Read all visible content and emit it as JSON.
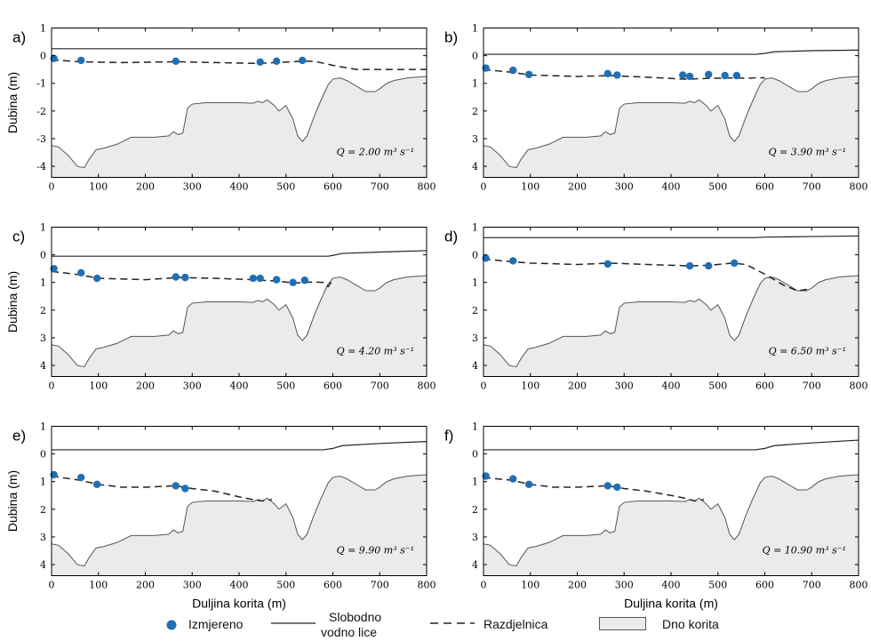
{
  "chart_data": {
    "type": "area",
    "xlabel": "Duljina korita (m)",
    "ylabel": "Dubina (m)",
    "xlim": [
      0,
      800
    ],
    "ylim_top": [
      -4.4,
      1
    ],
    "ylim_bottom": [
      4.4,
      -1
    ],
    "xticks": [
      0,
      100,
      200,
      300,
      400,
      500,
      600,
      700,
      800
    ],
    "yticks_top": [
      1,
      0,
      -1,
      -2,
      -3,
      -4
    ],
    "yticks_bottom": [
      1,
      0,
      1,
      2,
      3,
      4
    ],
    "yticklabels_top": [
      "1",
      "0",
      "-1",
      "-2",
      "-3",
      "-4"
    ],
    "yticklabels_bottom": [
      "1",
      "0",
      "1",
      "2",
      "3",
      "4"
    ],
    "grid": false,
    "legend_position": "bottom",
    "legend": {
      "measured": "Izmjereno",
      "water_surface_line1": "Slobodno",
      "water_surface_line2": "vodno lice",
      "separation": "Razdjelnica",
      "bed": "Dno korita"
    },
    "colors": {
      "measured": "#1f6fb5",
      "bed_fill": "#ebebeb",
      "bed_line": "#555555",
      "line": "#222222"
    },
    "bed": {
      "x": [
        0,
        15,
        35,
        55,
        70,
        80,
        95,
        110,
        140,
        170,
        190,
        220,
        250,
        260,
        270,
        280,
        290,
        300,
        330,
        380,
        400,
        430,
        440,
        450,
        460,
        475,
        485,
        500,
        515,
        525,
        535,
        545,
        560,
        575,
        590,
        600,
        615,
        630,
        650,
        670,
        690,
        700,
        715,
        730,
        760,
        800
      ],
      "y": [
        -3.25,
        -3.3,
        -3.6,
        -4.0,
        -4.05,
        -3.75,
        -3.4,
        -3.35,
        -3.2,
        -2.95,
        -2.95,
        -2.95,
        -2.9,
        -2.75,
        -2.85,
        -2.8,
        -1.9,
        -1.75,
        -1.7,
        -1.7,
        -1.7,
        -1.72,
        -1.65,
        -1.7,
        -1.6,
        -1.8,
        -2.0,
        -1.8,
        -2.3,
        -2.9,
        -3.1,
        -2.9,
        -2.2,
        -1.6,
        -1.05,
        -0.85,
        -0.8,
        -0.9,
        -1.1,
        -1.3,
        -1.3,
        -1.2,
        -1.0,
        -0.9,
        -0.8,
        -0.75
      ]
    },
    "panels": [
      {
        "label": "a)",
        "q_label": "Q = 2.00 m³ s⁻¹",
        "water_surface": {
          "x": [
            0,
            800
          ],
          "y": [
            0.25,
            0.25
          ]
        },
        "separation": {
          "x": [
            0,
            60,
            150,
            265,
            350,
            440,
            480,
            535,
            560,
            600,
            650,
            700,
            800
          ],
          "y": [
            -0.15,
            -0.22,
            -0.25,
            -0.22,
            -0.25,
            -0.28,
            -0.25,
            -0.2,
            -0.2,
            -0.35,
            -0.5,
            -0.5,
            -0.5
          ]
        },
        "measured": {
          "x": [
            5,
            63,
            265,
            445,
            480,
            535
          ],
          "y": [
            -0.1,
            -0.17,
            -0.2,
            -0.23,
            -0.2,
            -0.17
          ]
        }
      },
      {
        "label": "b)",
        "q_label": "Q = 3.90 m³ s⁻¹",
        "water_surface": {
          "x": [
            0,
            580,
            600,
            620,
            700,
            800
          ],
          "y": [
            0.05,
            0.05,
            0.08,
            0.14,
            0.18,
            0.2
          ]
        },
        "separation": {
          "x": [
            0,
            60,
            100,
            200,
            270,
            350,
            430,
            480,
            540,
            560,
            580,
            600
          ],
          "y": [
            -0.5,
            -0.6,
            -0.7,
            -0.75,
            -0.72,
            -0.78,
            -0.85,
            -0.82,
            -0.8,
            -0.82,
            -0.8,
            -0.8
          ]
        },
        "measured": {
          "x": [
            5,
            63,
            97,
            265,
            285,
            425,
            440,
            480,
            515,
            540
          ],
          "y": [
            -0.45,
            -0.53,
            -0.68,
            -0.65,
            -0.7,
            -0.7,
            -0.75,
            -0.68,
            -0.72,
            -0.72
          ]
        }
      },
      {
        "label": "c)",
        "q_label": "Q = 4.20 m³ s⁻¹",
        "water_surface": {
          "x": [
            0,
            590,
            600,
            620,
            700,
            800
          ],
          "y": [
            -0.05,
            -0.05,
            -0.02,
            0.05,
            0.1,
            0.15
          ]
        },
        "separation": {
          "x": [
            0,
            60,
            100,
            200,
            270,
            350,
            430,
            480,
            520,
            560,
            580,
            590,
            600
          ],
          "y": [
            -0.6,
            -0.72,
            -0.85,
            -0.9,
            -0.82,
            -0.85,
            -0.9,
            -0.95,
            -1.02,
            -0.98,
            -1.0,
            -1.15,
            -0.9
          ]
        },
        "measured": {
          "x": [
            5,
            63,
            97,
            265,
            285,
            430,
            445,
            480,
            515,
            540
          ],
          "y": [
            -0.5,
            -0.65,
            -0.85,
            -0.8,
            -0.82,
            -0.85,
            -0.85,
            -0.9,
            -1.0,
            -0.92
          ]
        }
      },
      {
        "label": "d)",
        "q_label": "Q = 6.50 m³ s⁻¹",
        "water_surface": {
          "x": [
            0,
            580,
            600,
            700,
            800
          ],
          "y": [
            0.62,
            0.62,
            0.64,
            0.66,
            0.68
          ]
        },
        "separation": {
          "x": [
            0,
            60,
            100,
            200,
            270,
            350,
            440,
            480,
            530,
            560,
            600,
            640,
            670,
            690
          ],
          "y": [
            -0.15,
            -0.25,
            -0.3,
            -0.35,
            -0.3,
            -0.35,
            -0.4,
            -0.38,
            -0.3,
            -0.35,
            -0.7,
            -1.1,
            -1.3,
            -1.25
          ]
        },
        "measured": {
          "x": [
            5,
            63,
            265,
            440,
            480,
            535
          ],
          "y": [
            -0.12,
            -0.22,
            -0.33,
            -0.4,
            -0.4,
            -0.3
          ]
        }
      },
      {
        "label": "e)",
        "q_label": "Q = 9.90 m³ s⁻¹",
        "water_surface": {
          "x": [
            0,
            580,
            600,
            620,
            700,
            800
          ],
          "y": [
            0.15,
            0.15,
            0.2,
            0.3,
            0.38,
            0.45
          ]
        },
        "separation": {
          "x": [
            0,
            60,
            100,
            150,
            200,
            265,
            300,
            350,
            400,
            430,
            450,
            470
          ],
          "y": [
            -0.8,
            -0.95,
            -1.1,
            -1.2,
            -1.2,
            -1.15,
            -1.25,
            -1.35,
            -1.55,
            -1.65,
            -1.7,
            -1.65
          ]
        },
        "measured": {
          "x": [
            5,
            63,
            97,
            265,
            285
          ],
          "y": [
            -0.75,
            -0.85,
            -1.1,
            -1.15,
            -1.25
          ]
        }
      },
      {
        "label": "f)",
        "q_label": "Q = 10.90 m³ s⁻¹",
        "water_surface": {
          "x": [
            0,
            580,
            600,
            620,
            700,
            800
          ],
          "y": [
            0.15,
            0.15,
            0.2,
            0.3,
            0.4,
            0.5
          ]
        },
        "separation": {
          "x": [
            0,
            60,
            100,
            150,
            200,
            265,
            300,
            350,
            400,
            430,
            450,
            470
          ],
          "y": [
            -0.85,
            -0.95,
            -1.1,
            -1.2,
            -1.2,
            -1.15,
            -1.25,
            -1.35,
            -1.5,
            -1.6,
            -1.7,
            -1.65
          ]
        },
        "measured": {
          "x": [
            5,
            63,
            97,
            265,
            285
          ],
          "y": [
            -0.8,
            -0.9,
            -1.1,
            -1.15,
            -1.2
          ]
        }
      }
    ]
  }
}
